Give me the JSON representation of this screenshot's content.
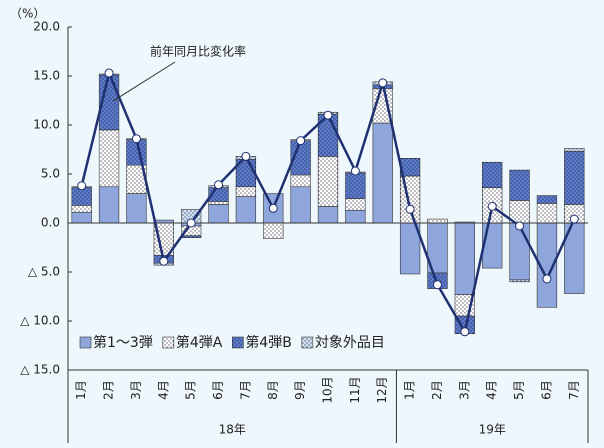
{
  "chart_data": {
    "type": "bar",
    "y_unit": "（%）",
    "annotation": "前年同月比変化率",
    "categories": [
      "1月",
      "2月",
      "3月",
      "4月",
      "5月",
      "6月",
      "7月",
      "8月",
      "9月",
      "10月",
      "11月",
      "12月",
      "1月",
      "2月",
      "3月",
      "4月",
      "5月",
      "6月",
      "7月"
    ],
    "groups": [
      "18年",
      "19年"
    ],
    "series": [
      {
        "name": "第1～3弾",
        "color": "#8fa6dc",
        "pattern": "solid",
        "values": [
          1.1,
          3.7,
          3.0,
          0.3,
          -0.3,
          1.9,
          2.7,
          3.0,
          3.7,
          1.7,
          1.3,
          10.2,
          -5.2,
          -5.1,
          -7.3,
          -4.6,
          -5.8,
          -8.6,
          -7.2
        ]
      },
      {
        "name": "第4弾A",
        "color": "#ffffff",
        "pattern": "dots",
        "values": [
          0.7,
          5.8,
          2.9,
          -3.3,
          -1.0,
          0.3,
          1.0,
          -1.6,
          1.2,
          5.1,
          1.2,
          3.5,
          4.8,
          0.4,
          -2.2,
          3.6,
          2.3,
          2.0,
          1.9
        ]
      },
      {
        "name": "第4弾B",
        "color": "#5a7bcf",
        "pattern": "dots",
        "values": [
          1.8,
          5.6,
          2.6,
          -0.8,
          -0.2,
          1.4,
          2.8,
          0.0,
          3.5,
          4.3,
          2.6,
          0.4,
          1.8,
          -1.6,
          -1.8,
          2.6,
          3.1,
          0.8,
          5.4
        ]
      },
      {
        "name": "対象外品目",
        "color": "#cfe0f5",
        "pattern": "dots",
        "values": [
          0.1,
          0.1,
          0.1,
          -0.2,
          1.4,
          0.2,
          0.3,
          0.0,
          0.1,
          0.2,
          0.1,
          0.3,
          0.0,
          0.0,
          0.1,
          0.0,
          -0.2,
          0.0,
          0.3
        ]
      }
    ],
    "line": {
      "name": "前年同月比変化率",
      "color": "#1f3170",
      "values": [
        3.8,
        15.3,
        8.6,
        -3.9,
        0.0,
        3.9,
        6.8,
        1.5,
        8.4,
        11.0,
        5.3,
        14.3,
        1.4,
        -6.3,
        -11.1,
        1.7,
        -0.3,
        -5.7,
        0.4
      ]
    },
    "ylim": [
      -15,
      20
    ],
    "yticks": [
      {
        "value": 20,
        "label": "20.0"
      },
      {
        "value": 15,
        "label": "15.0"
      },
      {
        "value": 10,
        "label": "10.0"
      },
      {
        "value": 5,
        "label": "5.0"
      },
      {
        "value": 0,
        "label": "0.0"
      },
      {
        "value": -5,
        "label": "△ 5.0"
      },
      {
        "value": -10,
        "label": "△ 10.0"
      },
      {
        "value": -15,
        "label": "△ 15.0"
      }
    ]
  }
}
